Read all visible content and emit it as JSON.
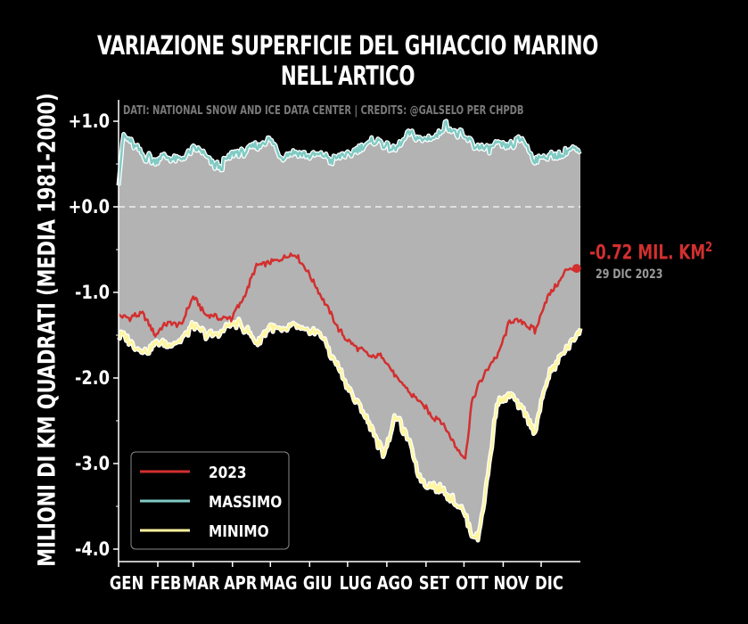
{
  "title_line1": "VARIAZIONE SUPERFICIE DEL GHIACCIO MARINO",
  "title_line2": "NELL'ARTICO",
  "ylabel": "MILIONI DI KM QUADRATI (MEDIA 1981-2000)",
  "source": "DATI: NATIONAL SNOW AND ICE DATA CENTER | CREDITS: @GALSELO PER CHPDB",
  "annotation": {
    "value": "-0.72 MIL. KM",
    "value_sup": "2",
    "date": "29 DIC 2023",
    "color": "#d32f2f"
  },
  "colors": {
    "background": "#000000",
    "fill": "#b3b3b3",
    "series_2023": "#d32f2f",
    "series_max": "#80cbc4",
    "series_min": "#fff59d",
    "zero_line": "#ffffff"
  },
  "chart_data": {
    "type": "line",
    "title": "VARIAZIONE SUPERFICIE DEL GHIACCIO MARINO NELL'ARTICO",
    "xlabel": "",
    "ylabel": "MILIONI DI KM QUADRATI (MEDIA 1981-2000)",
    "ylim": [
      -4.1,
      1.12
    ],
    "xlim": [
      1,
      366
    ],
    "yticks": [
      1.0,
      0.0,
      -1.0,
      -2.0,
      -3.0,
      -4.0
    ],
    "ytick_labels": [
      "+1.0",
      "+0.0",
      "-1.0",
      "-2.0",
      "-3.0",
      "-4.0"
    ],
    "xticks": [
      1,
      32,
      60,
      91,
      121,
      152,
      182,
      213,
      244,
      274,
      305,
      335
    ],
    "xtick_labels": [
      "GEN",
      "FEB",
      "MAR",
      "APR",
      "MAG",
      "GIU",
      "LUG",
      "AGO",
      "SET",
      "OTT",
      "NOV",
      "DIC"
    ],
    "legend_position": "lower-left",
    "grid": false,
    "zero_line": "dashed",
    "fill_between": [
      "MASSIMO",
      "MINIMO"
    ],
    "series": [
      {
        "name": "2023",
        "x": [
          1,
          10,
          20,
          30,
          40,
          50,
          60,
          70,
          80,
          90,
          100,
          110,
          120,
          130,
          140,
          150,
          160,
          170,
          180,
          190,
          200,
          210,
          220,
          230,
          240,
          250,
          255,
          260,
          265,
          270,
          275,
          280,
          285,
          290,
          300,
          310,
          320,
          330,
          340,
          345,
          350,
          355,
          360,
          363
        ],
        "y": [
          -1.25,
          -1.3,
          -1.25,
          -1.5,
          -1.35,
          -1.4,
          -1.05,
          -1.25,
          -1.3,
          -1.3,
          -1.05,
          -0.7,
          -0.65,
          -0.6,
          -0.55,
          -0.75,
          -1.0,
          -1.3,
          -1.55,
          -1.65,
          -1.75,
          -1.75,
          -2.0,
          -2.15,
          -2.3,
          -2.45,
          -2.5,
          -2.6,
          -2.75,
          -2.85,
          -2.95,
          -2.3,
          -2.1,
          -1.95,
          -1.75,
          -1.35,
          -1.35,
          -1.45,
          -1.05,
          -0.95,
          -0.85,
          -0.72,
          -0.73,
          -0.72
        ]
      },
      {
        "name": "MASSIMO",
        "x": [
          1,
          5,
          10,
          20,
          30,
          40,
          50,
          60,
          70,
          80,
          90,
          100,
          110,
          120,
          130,
          140,
          150,
          160,
          170,
          180,
          190,
          200,
          210,
          220,
          230,
          240,
          250,
          260,
          270,
          280,
          290,
          300,
          310,
          320,
          330,
          340,
          350,
          360,
          366
        ],
        "y": [
          0.3,
          0.85,
          0.75,
          0.6,
          0.55,
          0.6,
          0.55,
          0.7,
          0.6,
          0.45,
          0.6,
          0.65,
          0.7,
          0.8,
          0.6,
          0.65,
          0.6,
          0.6,
          0.55,
          0.6,
          0.65,
          0.75,
          0.75,
          0.65,
          0.85,
          0.8,
          0.8,
          0.95,
          0.85,
          0.75,
          0.65,
          0.75,
          0.7,
          0.8,
          0.55,
          0.6,
          0.6,
          0.7,
          0.6
        ]
      },
      {
        "name": "MINIMO",
        "x": [
          1,
          10,
          20,
          30,
          40,
          50,
          60,
          70,
          80,
          90,
          100,
          110,
          120,
          130,
          140,
          150,
          160,
          170,
          180,
          190,
          200,
          210,
          220,
          230,
          240,
          250,
          260,
          270,
          275,
          280,
          285,
          290,
          300,
          310,
          320,
          330,
          340,
          350,
          355,
          360,
          366
        ],
        "y": [
          -1.5,
          -1.55,
          -1.7,
          -1.6,
          -1.6,
          -1.55,
          -1.4,
          -1.5,
          -1.5,
          -1.35,
          -1.4,
          -1.6,
          -1.4,
          -1.45,
          -1.4,
          -1.45,
          -1.45,
          -1.75,
          -2.05,
          -2.3,
          -2.55,
          -2.9,
          -2.45,
          -2.7,
          -3.2,
          -3.25,
          -3.35,
          -3.5,
          -3.6,
          -3.8,
          -3.85,
          -3.45,
          -2.3,
          -2.2,
          -2.35,
          -2.65,
          -2.0,
          -1.75,
          -1.65,
          -1.55,
          -1.45
        ]
      }
    ]
  }
}
